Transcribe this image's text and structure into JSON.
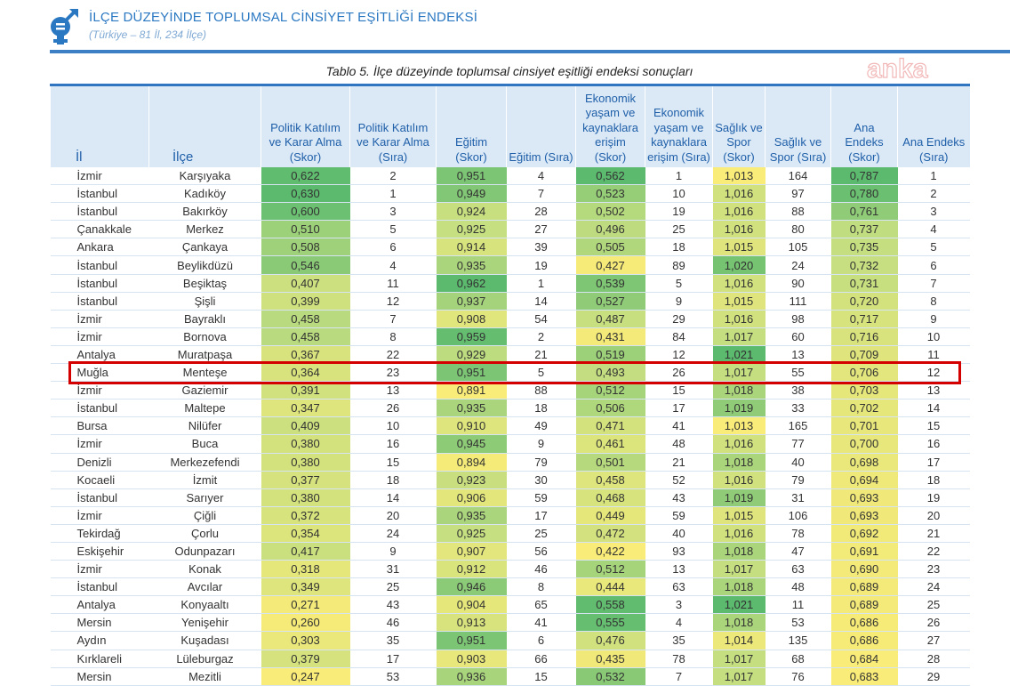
{
  "header": {
    "title": "İLÇE DÜZEYİNDE TOPLUMSAL CİNSİYET EŞİTLİĞİ ENDEKSİ",
    "subtitle": "(Türkiye – 81 İl, 234 İlçe)",
    "logo_icon": "gender-symbol-icon",
    "accent": "#2b78c2"
  },
  "caption": "Tablo 5. İlçe düzeyinde toplumsal cinsiyet eşitliği endeksi sonuçları",
  "watermark": "anka",
  "columns": [
    "İl",
    "İlçe",
    "Politik Katılım ve Karar Alma (Skor)",
    "Politik Katılım ve Karar Alma (Sıra)",
    "Eğitim (Skor)",
    "Eğitim (Sıra)",
    "Ekonomik yaşam ve kaynaklara erişim (Skor)",
    "Ekonomik yaşam ve kaynaklara erişim (Sıra)",
    "Sağlık ve Spor (Skor)",
    "Sağlık ve Spor (Sıra)",
    "Ana Endeks (Skor)",
    "Ana Endeks (Sıra)"
  ],
  "highlight_row": 11,
  "rows": [
    [
      "İzmir",
      "Karşıyaka",
      "0,622",
      "2",
      "0,951",
      "4",
      "0,562",
      "1",
      "1,013",
      "164",
      "0,787",
      "1"
    ],
    [
      "İstanbul",
      "Kadıköy",
      "0,630",
      "1",
      "0,949",
      "7",
      "0,523",
      "10",
      "1,016",
      "97",
      "0,780",
      "2"
    ],
    [
      "İstanbul",
      "Bakırköy",
      "0,600",
      "3",
      "0,924",
      "28",
      "0,502",
      "19",
      "1,016",
      "88",
      "0,761",
      "3"
    ],
    [
      "Çanakkale",
      "Merkez",
      "0,510",
      "5",
      "0,925",
      "27",
      "0,496",
      "25",
      "1,016",
      "80",
      "0,737",
      "4"
    ],
    [
      "Ankara",
      "Çankaya",
      "0,508",
      "6",
      "0,914",
      "39",
      "0,505",
      "18",
      "1,015",
      "105",
      "0,735",
      "5"
    ],
    [
      "İstanbul",
      "Beylikdüzü",
      "0,546",
      "4",
      "0,935",
      "19",
      "0,427",
      "89",
      "1,020",
      "24",
      "0,732",
      "6"
    ],
    [
      "İstanbul",
      "Beşiktaş",
      "0,407",
      "11",
      "0,962",
      "1",
      "0,539",
      "5",
      "1,016",
      "90",
      "0,731",
      "7"
    ],
    [
      "İstanbul",
      "Şişli",
      "0,399",
      "12",
      "0,937",
      "14",
      "0,527",
      "9",
      "1,015",
      "111",
      "0,720",
      "8"
    ],
    [
      "İzmir",
      "Bayraklı",
      "0,458",
      "7",
      "0,908",
      "54",
      "0,487",
      "29",
      "1,016",
      "98",
      "0,717",
      "9"
    ],
    [
      "İzmir",
      "Bornova",
      "0,458",
      "8",
      "0,959",
      "2",
      "0,431",
      "84",
      "1,017",
      "60",
      "0,716",
      "10"
    ],
    [
      "Antalya",
      "Muratpaşa",
      "0,367",
      "22",
      "0,929",
      "21",
      "0,519",
      "12",
      "1,021",
      "13",
      "0,709",
      "11"
    ],
    [
      "Muğla",
      "Menteşe",
      "0,364",
      "23",
      "0,951",
      "5",
      "0,493",
      "26",
      "1,017",
      "55",
      "0,706",
      "12"
    ],
    [
      "İzmir",
      "Gaziemir",
      "0,391",
      "13",
      "0,891",
      "88",
      "0,512",
      "15",
      "1,018",
      "38",
      "0,703",
      "13"
    ],
    [
      "İstanbul",
      "Maltepe",
      "0,347",
      "26",
      "0,935",
      "18",
      "0,506",
      "17",
      "1,019",
      "33",
      "0,702",
      "14"
    ],
    [
      "Bursa",
      "Nilüfer",
      "0,409",
      "10",
      "0,910",
      "49",
      "0,471",
      "41",
      "1,013",
      "165",
      "0,701",
      "15"
    ],
    [
      "İzmir",
      "Buca",
      "0,380",
      "16",
      "0,945",
      "9",
      "0,461",
      "48",
      "1,016",
      "77",
      "0,700",
      "16"
    ],
    [
      "Denizli",
      "Merkezefendi",
      "0,380",
      "15",
      "0,894",
      "79",
      "0,501",
      "21",
      "1,018",
      "40",
      "0,698",
      "17"
    ],
    [
      "Kocaeli",
      "İzmit",
      "0,377",
      "18",
      "0,923",
      "30",
      "0,458",
      "52",
      "1,016",
      "79",
      "0,694",
      "18"
    ],
    [
      "İstanbul",
      "Sarıyer",
      "0,380",
      "14",
      "0,906",
      "59",
      "0,468",
      "43",
      "1,019",
      "31",
      "0,693",
      "19"
    ],
    [
      "İzmir",
      "Çiğli",
      "0,372",
      "20",
      "0,935",
      "17",
      "0,449",
      "59",
      "1,015",
      "106",
      "0,693",
      "20"
    ],
    [
      "Tekirdağ",
      "Çorlu",
      "0,354",
      "24",
      "0,925",
      "25",
      "0,472",
      "40",
      "1,016",
      "78",
      "0,692",
      "21"
    ],
    [
      "Eskişehir",
      "Odunpazarı",
      "0,417",
      "9",
      "0,907",
      "56",
      "0,422",
      "93",
      "1,018",
      "47",
      "0,691",
      "22"
    ],
    [
      "İzmir",
      "Konak",
      "0,318",
      "31",
      "0,912",
      "46",
      "0,512",
      "13",
      "1,017",
      "63",
      "0,690",
      "23"
    ],
    [
      "İstanbul",
      "Avcılar",
      "0,349",
      "25",
      "0,946",
      "8",
      "0,444",
      "63",
      "1,018",
      "48",
      "0,689",
      "24"
    ],
    [
      "Antalya",
      "Konyaaltı",
      "0,271",
      "43",
      "0,904",
      "65",
      "0,558",
      "3",
      "1,021",
      "11",
      "0,689",
      "25"
    ],
    [
      "Mersin",
      "Yenişehir",
      "0,260",
      "46",
      "0,913",
      "41",
      "0,555",
      "4",
      "1,018",
      "53",
      "0,686",
      "26"
    ],
    [
      "Aydın",
      "Kuşadası",
      "0,303",
      "35",
      "0,951",
      "6",
      "0,476",
      "35",
      "1,014",
      "135",
      "0,686",
      "27"
    ],
    [
      "Kırklareli",
      "Lüleburgaz",
      "0,379",
      "17",
      "0,903",
      "66",
      "0,435",
      "78",
      "1,017",
      "68",
      "0,684",
      "28"
    ],
    [
      "Mersin",
      "Mezitli",
      "0,247",
      "53",
      "0,936",
      "15",
      "0,532",
      "7",
      "1,017",
      "76",
      "0,683",
      "29"
    ]
  ]
}
